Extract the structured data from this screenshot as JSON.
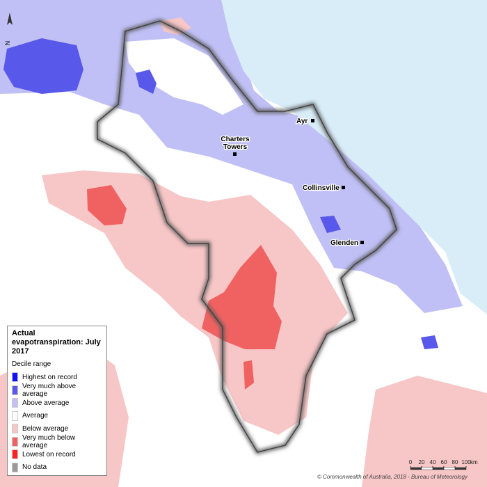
{
  "map_title": "Actual evapotranspiration: July 2017",
  "legend": {
    "subtitle": "Decile range",
    "items": [
      {
        "label": "Highest on record",
        "color": "#1010ff"
      },
      {
        "label": "Very much above average",
        "color": "#5858ea"
      },
      {
        "label": "Above average",
        "color": "#c0c0f6"
      },
      {
        "label": "Average",
        "color": "#ffffff"
      },
      {
        "label": "Below average",
        "color": "#f7c6c6"
      },
      {
        "label": "Very much below average",
        "color": "#f06262"
      },
      {
        "label": "Lowest on record",
        "color": "#ff2222"
      },
      {
        "label": "No data",
        "color": "#999999"
      }
    ]
  },
  "places": [
    {
      "lines": [
        "Ayr"
      ]
    },
    {
      "lines": [
        "Charters",
        "Towers"
      ]
    },
    {
      "lines": [
        "Collinsville"
      ]
    },
    {
      "lines": [
        "Glenden"
      ]
    }
  ],
  "north": "N",
  "scale_bar": {
    "ticks": [
      0,
      20,
      40,
      60,
      80,
      100
    ],
    "unit": "km"
  },
  "credit": "© Commonwealth of Australia, 2018 - Bureau of Meteorology"
}
